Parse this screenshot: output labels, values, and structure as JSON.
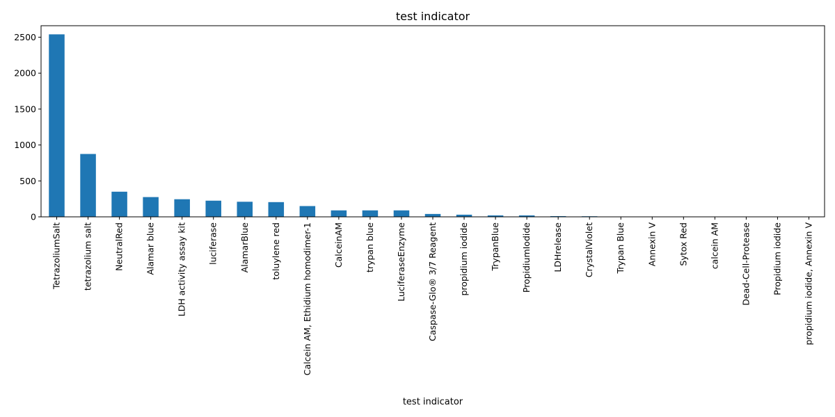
{
  "chart_data": {
    "type": "bar",
    "title": "test indicator",
    "xlabel": "test indicator",
    "ylabel": "",
    "ylim": [
      0,
      2660
    ],
    "yticks": [
      0,
      500,
      1000,
      1500,
      2000,
      2500
    ],
    "grid": false,
    "legend": "none",
    "bar_color": "#1f77b4",
    "categories": [
      "TetrazoliumSalt",
      "tetrazolium salt",
      "NeutralRed",
      "Alamar blue",
      "LDH activity assay kit",
      "luciferase",
      "AlamarBlue",
      "toluylene red",
      "Calcein AM, Ethidium homodimer-1",
      "CalceinAM",
      "trypan blue",
      "LuciferaseEnzyme",
      "Caspase-Glo® 3/7 Reagent",
      "propidium iodide",
      "TrypanBlue",
      "PropidiumIodide",
      "LDHrelease",
      "CrystalViolet",
      "Trypan Blue",
      "Annexin V",
      "Sytox Red",
      "calcein AM",
      "Dead-Cell-Protease",
      "Propidium iodide",
      "propidium iodide, Annexin V"
    ],
    "values": [
      2540,
      875,
      350,
      275,
      245,
      225,
      210,
      205,
      150,
      90,
      90,
      90,
      40,
      30,
      20,
      20,
      10,
      8,
      2,
      2,
      1,
      1,
      1,
      1,
      1
    ]
  }
}
